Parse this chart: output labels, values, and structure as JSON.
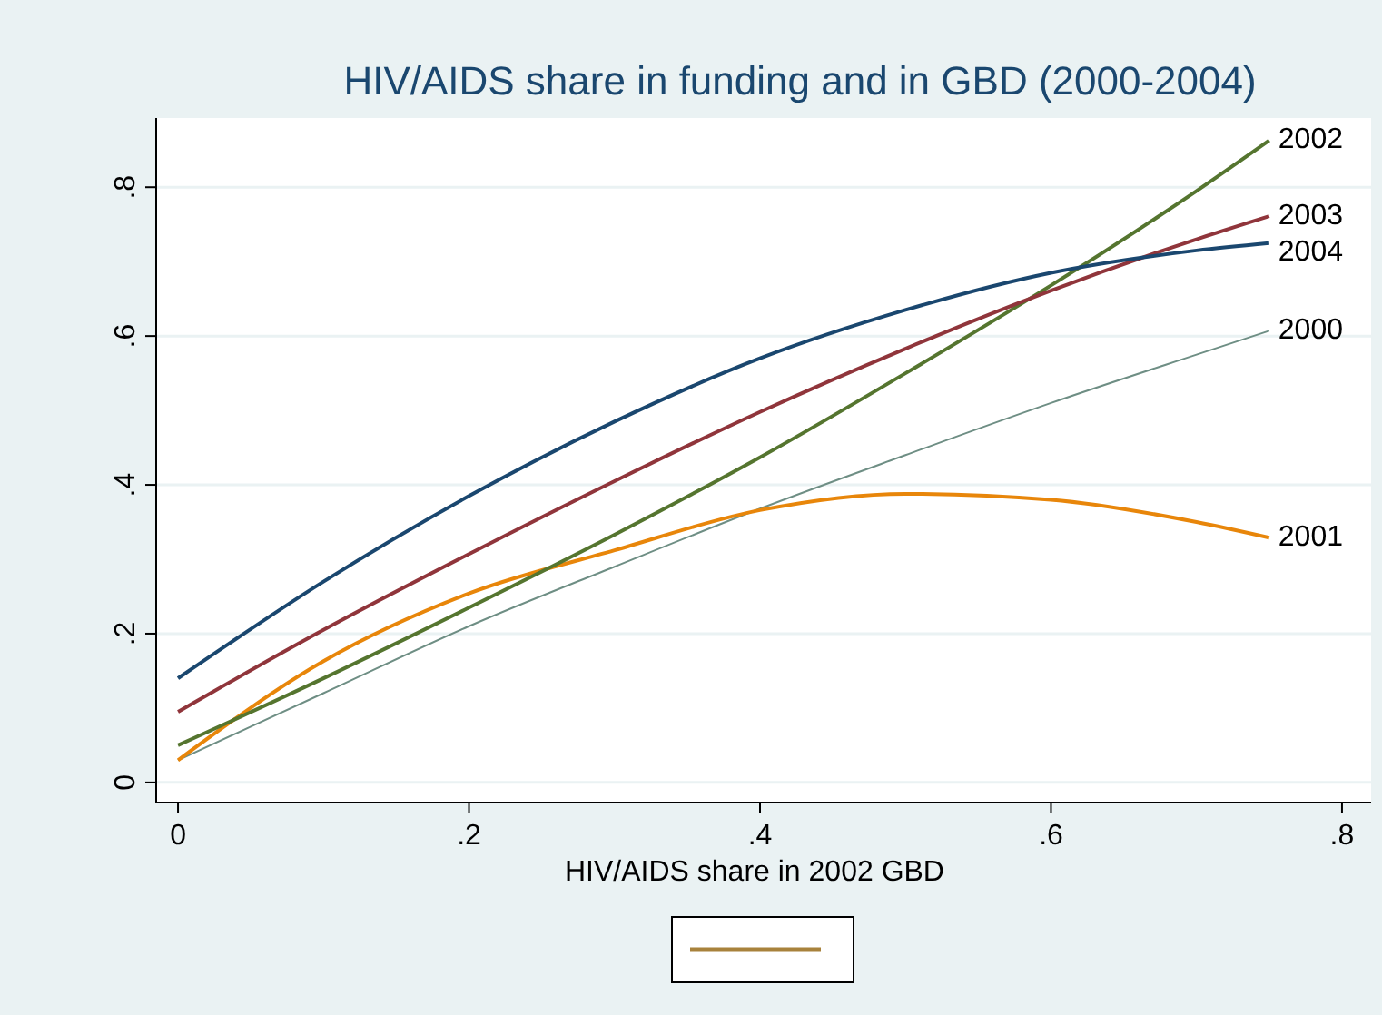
{
  "chart_data": {
    "type": "line",
    "title": "HIV/AIDS share in funding and in GBD (2000-2004)",
    "xlabel": "HIV/AIDS share in 2002 GBD",
    "x": [
      0,
      0.1,
      0.2,
      0.3,
      0.4,
      0.5,
      0.6,
      0.7,
      0.75
    ],
    "series": [
      {
        "name": "2000",
        "color": "#6e8e84",
        "values": [
          0.03,
          0.12,
          0.21,
          0.29,
          0.368,
          0.44,
          0.51,
          0.575,
          0.607
        ]
      },
      {
        "name": "2001",
        "color": "#e8860a",
        "values": [
          0.03,
          0.163,
          0.254,
          0.312,
          0.366,
          0.388,
          0.38,
          0.35,
          0.329
        ]
      },
      {
        "name": "2002",
        "color": "#55752f",
        "values": [
          0.05,
          0.14,
          0.235,
          0.333,
          0.437,
          0.55,
          0.668,
          0.795,
          0.863
        ]
      },
      {
        "name": "2003",
        "color": "#90353b",
        "values": [
          0.095,
          0.205,
          0.307,
          0.405,
          0.498,
          0.583,
          0.661,
          0.73,
          0.761
        ]
      },
      {
        "name": "2004",
        "color": "#1a476f",
        "values": [
          0.14,
          0.27,
          0.385,
          0.485,
          0.57,
          0.635,
          0.685,
          0.715,
          0.725
        ]
      }
    ],
    "xlim": [
      -0.015,
      0.82
    ],
    "ylim": [
      -0.027,
      0.893
    ],
    "xticks": [
      0,
      {
        "value": 0.2,
        "label": ".2"
      },
      {
        "value": 0.4,
        "label": ".4"
      },
      {
        "value": 0.6,
        "label": ".6"
      },
      {
        "value": 0.8,
        "label": ".8"
      }
    ],
    "yticks": [
      0,
      {
        "value": 0.2,
        "label": ".2"
      },
      {
        "value": 0.4,
        "label": ".4"
      },
      {
        "value": 0.6,
        "label": ".6"
      },
      {
        "value": 0.8,
        "label": ".8"
      }
    ],
    "grid": "y",
    "marker": "none",
    "line_style": "solid"
  }
}
